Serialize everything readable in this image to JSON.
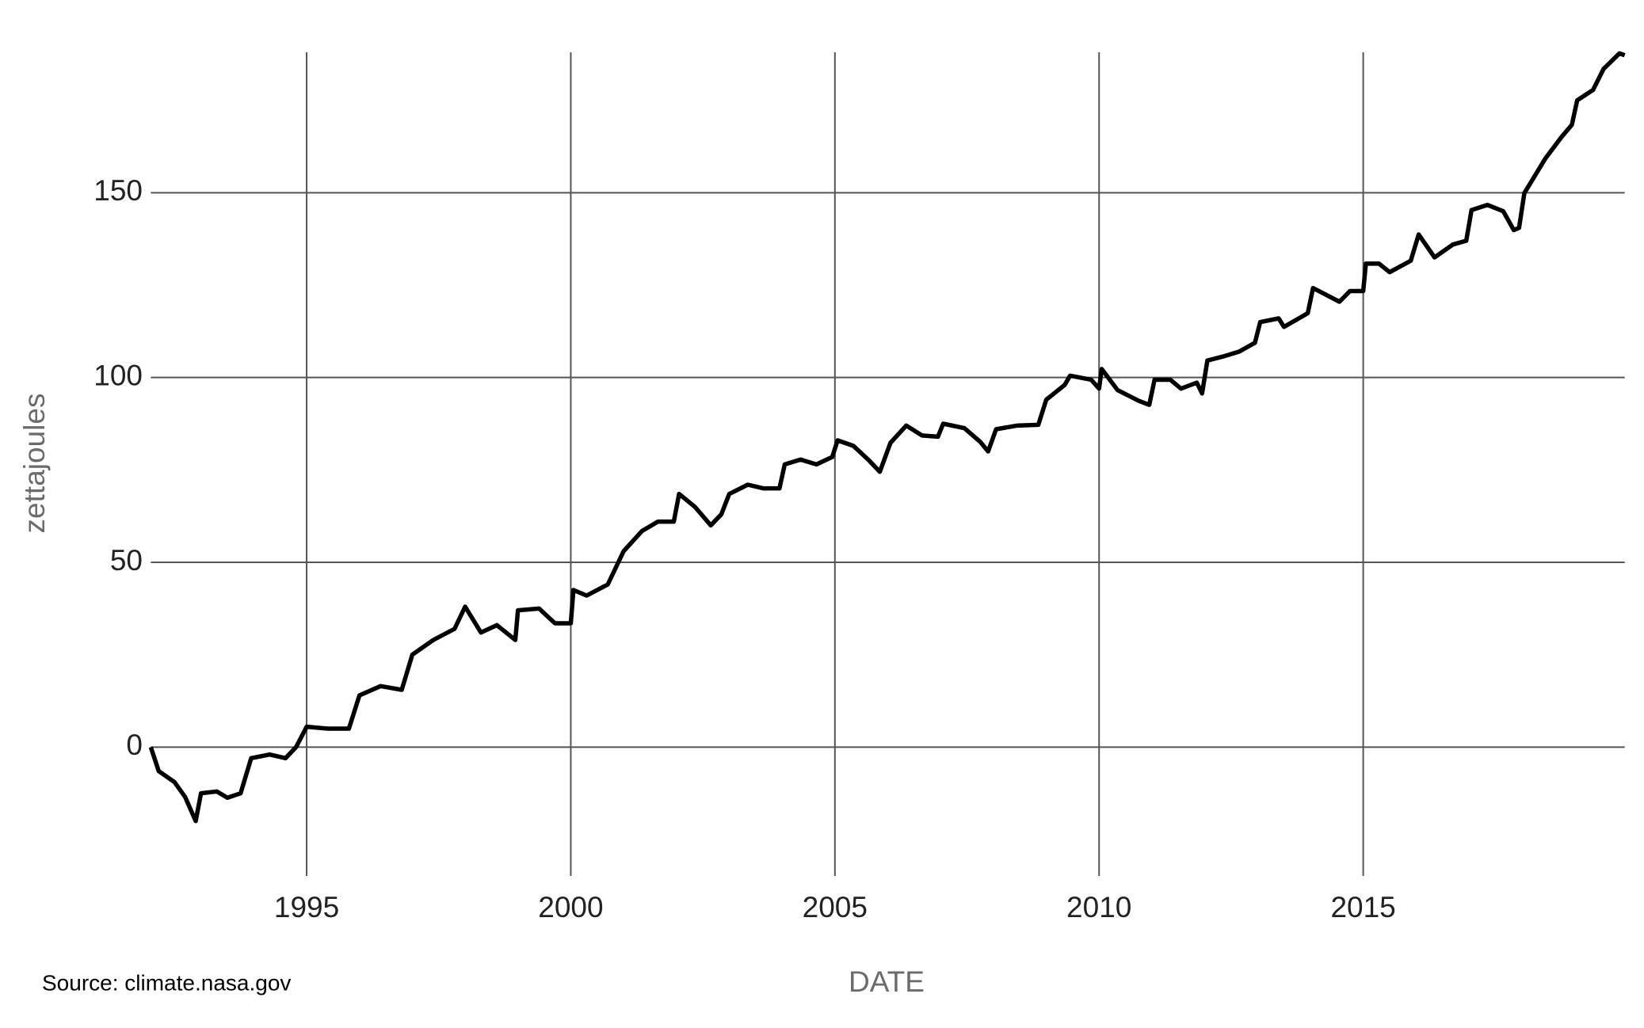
{
  "chart_data": {
    "type": "line",
    "xlabel": "DATE",
    "ylabel": "zettajoules",
    "source": "Source: climate.nasa.gov",
    "color": "#000000",
    "grid": true,
    "xlim": [
      1992,
      2020
    ],
    "ylim": [
      -34,
      188
    ],
    "xticks": [
      1995,
      2000,
      2005,
      2010,
      2015
    ],
    "yticks": [
      0,
      50,
      100,
      150
    ],
    "x": [
      1992.05,
      1992.2,
      1992.5,
      1992.7,
      1992.9,
      1993.0,
      1993.3,
      1993.5,
      1993.75,
      1993.95,
      1994.3,
      1994.6,
      1994.8,
      1995.0,
      1995.4,
      1995.8,
      1996.0,
      1996.4,
      1996.8,
      1997.0,
      1997.4,
      1997.8,
      1998.0,
      1998.3,
      1998.6,
      1998.95,
      1999.0,
      1999.4,
      1999.7,
      2000.0,
      2000.05,
      2000.3,
      2000.7,
      2001.0,
      2001.35,
      2001.65,
      2001.95,
      2002.05,
      2002.35,
      2002.65,
      2002.85,
      2003.0,
      2003.35,
      2003.65,
      2003.95,
      2004.05,
      2004.35,
      2004.65,
      2004.95,
      2005.05,
      2005.35,
      2005.65,
      2005.85,
      2006.05,
      2006.35,
      2006.65,
      2006.95,
      2007.05,
      2007.45,
      2007.75,
      2007.9,
      2008.05,
      2008.45,
      2008.85,
      2009.0,
      2009.35,
      2009.45,
      2009.85,
      2010.0,
      2010.05,
      2010.35,
      2010.75,
      2010.95,
      2011.05,
      2011.35,
      2011.55,
      2011.85,
      2011.95,
      2012.05,
      2012.35,
      2012.65,
      2012.95,
      2013.05,
      2013.4,
      2013.5,
      2013.95,
      2014.05,
      2014.55,
      2014.75,
      2015.0,
      2015.05,
      2015.3,
      2015.5,
      2015.9,
      2016.05,
      2016.35,
      2016.7,
      2016.95,
      2017.05,
      2017.35,
      2017.65,
      2017.85,
      2017.95,
      2018.05,
      2018.45,
      2018.75,
      2018.95,
      2019.05,
      2019.35,
      2019.55,
      2019.85,
      2019.95
    ],
    "values": [
      0,
      -6.5,
      -9.5,
      -13.5,
      -20,
      -12.5,
      -12,
      -13.7,
      -12.5,
      -3,
      -2,
      -3,
      0,
      5.5,
      5,
      5,
      14,
      16.5,
      15.5,
      25,
      29,
      32,
      38,
      31,
      33,
      29,
      37,
      37.5,
      33.5,
      33.5,
      42.5,
      41,
      44,
      53,
      58.5,
      61,
      61,
      68.5,
      65,
      60,
      63,
      68.5,
      71,
      70,
      70,
      76.5,
      77.8,
      76.5,
      78.5,
      83,
      81.5,
      77.5,
      74.5,
      82.3,
      87,
      84.3,
      84,
      87.5,
      86.3,
      82.6,
      80,
      86,
      87,
      87.2,
      94,
      98,
      100.5,
      99.4,
      97,
      102.3,
      96.6,
      93.7,
      92.6,
      99.4,
      99.4,
      97,
      98.6,
      95.7,
      104.6,
      105.7,
      107,
      109.4,
      115,
      116,
      113.7,
      117.4,
      124.2,
      120.5,
      123.4,
      123.4,
      130.8,
      130.8,
      128.5,
      131.6,
      138.7,
      132.5,
      136,
      137,
      145.3,
      146.7,
      145,
      139.9,
      140.5,
      149.9,
      159.3,
      165,
      168.4,
      175,
      177.8,
      183.5,
      187.7,
      187.2
    ]
  }
}
